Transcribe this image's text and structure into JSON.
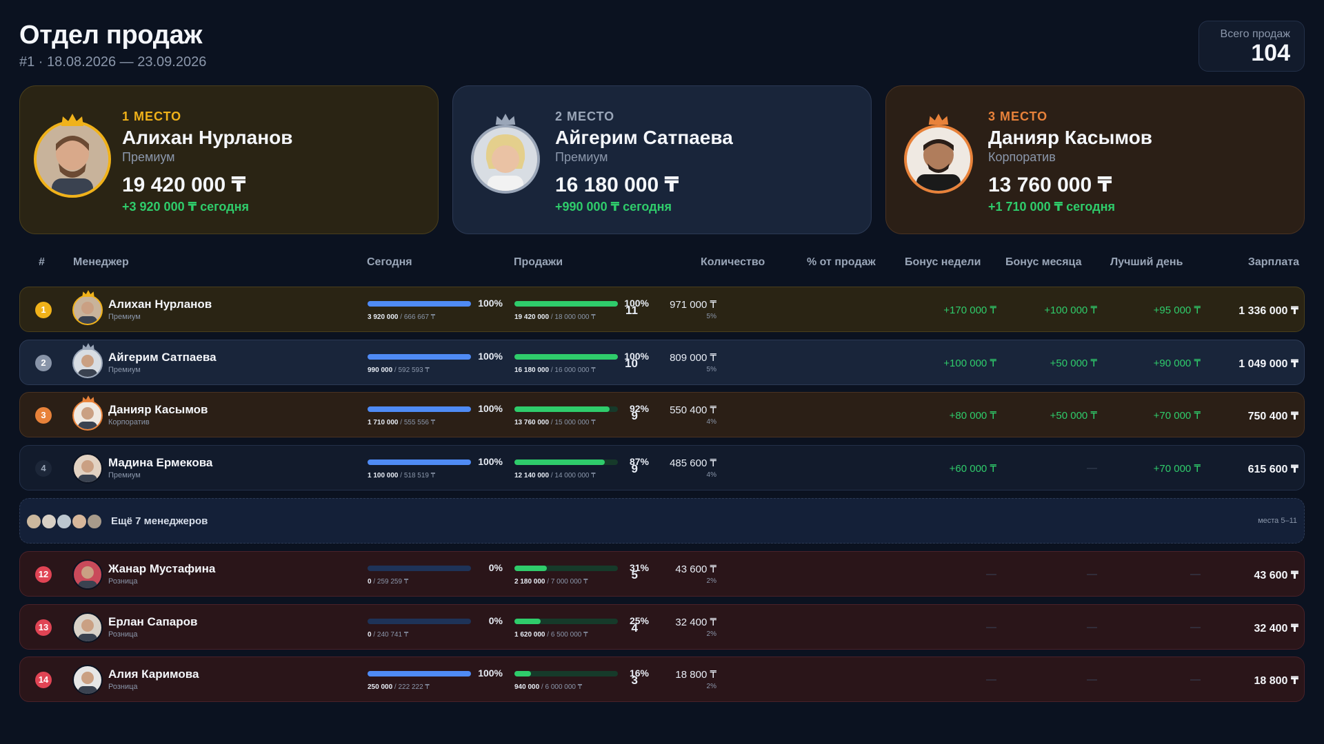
{
  "header": {
    "title": "Отдел продаж",
    "subtitle": "#1 · 18.08.2026 — 23.09.2026",
    "total_label": "Всего продаж",
    "total_value": "104"
  },
  "colors": {
    "gold": "#f0b21a",
    "silver": "#9aa6b8",
    "bronze": "#e8823a",
    "positive": "#2fcc6b",
    "bar_today": "#4f8bf5",
    "bar_sales": "#2fcc6b",
    "alert": "#e04454"
  },
  "podium": [
    {
      "place": "1 МЕСТО",
      "name": "Алихан Нурланов",
      "tier": "Премиум",
      "amount": "19 420 000 ₸",
      "today": "+3 920 000 ₸ сегодня"
    },
    {
      "place": "2 МЕСТО",
      "name": "Айгерим Сатпаева",
      "tier": "Премиум",
      "amount": "16 180 000 ₸",
      "today": "+990 000 ₸ сегодня"
    },
    {
      "place": "3 МЕСТО",
      "name": "Данияр Касымов",
      "tier": "Корпоратив",
      "amount": "13 760 000 ₸",
      "today": "+1 710 000 ₸ сегодня"
    }
  ],
  "columns": {
    "rank": "#",
    "manager": "Менеджер",
    "today": "Сегодня",
    "sales": "Продажи",
    "count": "Количество",
    "share": "% от продаж",
    "bonus_week": "Бонус недели",
    "bonus_month": "Бонус месяца",
    "best_day": "Лучший день",
    "salary": "Зарплата"
  },
  "rows": [
    {
      "rank": "1",
      "name": "Алихан Нурланов",
      "tier": "Премиум",
      "today_pct": "100%",
      "today_fill": 1.0,
      "today_done": "3 920 000",
      "today_plan": " / 666 667 ₸",
      "sales_pct": "100%",
      "sales_fill": 1.0,
      "sales_done": "19 420 000",
      "sales_plan": " / 18 000 000 ₸",
      "count": "11",
      "share": "971 000 ₸",
      "share_pct": "5%",
      "bonus_week": "+170 000 ₸",
      "bonus_month": "+100 000 ₸",
      "best_day": "+95 000 ₸",
      "salary": "1 336 000 ₸"
    },
    {
      "rank": "2",
      "name": "Айгерим Сатпаева",
      "tier": "Премиум",
      "today_pct": "100%",
      "today_fill": 1.0,
      "today_done": "990 000",
      "today_plan": " / 592 593 ₸",
      "sales_pct": "100%",
      "sales_fill": 1.0,
      "sales_done": "16 180 000",
      "sales_plan": " / 16 000 000 ₸",
      "count": "10",
      "share": "809 000 ₸",
      "share_pct": "5%",
      "bonus_week": "+100 000 ₸",
      "bonus_month": "+50 000 ₸",
      "best_day": "+90 000 ₸",
      "salary": "1 049 000 ₸"
    },
    {
      "rank": "3",
      "name": "Данияр Касымов",
      "tier": "Корпоратив",
      "today_pct": "100%",
      "today_fill": 1.0,
      "today_done": "1 710 000",
      "today_plan": " / 555 556 ₸",
      "sales_pct": "92%",
      "sales_fill": 0.92,
      "sales_done": "13 760 000",
      "sales_plan": " / 15 000 000 ₸",
      "count": "9",
      "share": "550 400 ₸",
      "share_pct": "4%",
      "bonus_week": "+80 000 ₸",
      "bonus_month": "+50 000 ₸",
      "best_day": "+70 000 ₸",
      "salary": "750 400 ₸"
    },
    {
      "rank": "4",
      "name": "Мадина Ермекова",
      "tier": "Премиум",
      "today_pct": "100%",
      "today_fill": 1.0,
      "today_done": "1 100 000",
      "today_plan": " / 518 519 ₸",
      "sales_pct": "87%",
      "sales_fill": 0.87,
      "sales_done": "12 140 000",
      "sales_plan": " / 14 000 000 ₸",
      "count": "9",
      "share": "485 600 ₸",
      "share_pct": "4%",
      "bonus_week": "+60 000 ₸",
      "bonus_month": "—",
      "best_day": "+70 000 ₸",
      "salary": "615 600 ₸"
    },
    {
      "rank": "12",
      "name": "Жанар Мустафина",
      "tier": "Розница",
      "today_pct": "0%",
      "today_fill": 0.0,
      "today_done": "0",
      "today_plan": " / 259 259 ₸",
      "sales_pct": "31%",
      "sales_fill": 0.31,
      "sales_done": "2 180 000",
      "sales_plan": " / 7 000 000 ₸",
      "count": "5",
      "share": "43 600 ₸",
      "share_pct": "2%",
      "bonus_week": "—",
      "bonus_month": "—",
      "best_day": "—",
      "salary": "43 600 ₸"
    },
    {
      "rank": "13",
      "name": "Ерлан Сапаров",
      "tier": "Розница",
      "today_pct": "0%",
      "today_fill": 0.0,
      "today_done": "0",
      "today_plan": " / 240 741 ₸",
      "sales_pct": "25%",
      "sales_fill": 0.25,
      "sales_done": "1 620 000",
      "sales_plan": " / 6 500 000 ₸",
      "count": "4",
      "share": "32 400 ₸",
      "share_pct": "2%",
      "bonus_week": "—",
      "bonus_month": "—",
      "best_day": "—",
      "salary": "32 400 ₸"
    },
    {
      "rank": "14",
      "name": "Алия Каримова",
      "tier": "Розница",
      "today_pct": "100%",
      "today_fill": 1.0,
      "today_done": "250 000",
      "today_plan": " / 222 222 ₸",
      "sales_pct": "16%",
      "sales_fill": 0.16,
      "sales_done": "940 000",
      "sales_plan": " / 6 000 000 ₸",
      "count": "3",
      "share": "18 800 ₸",
      "share_pct": "2%",
      "bonus_week": "—",
      "bonus_month": "—",
      "best_day": "—",
      "salary": "18 800 ₸"
    }
  ],
  "more": {
    "label": "Ещё 7 менеджеров",
    "range": "места 5–11"
  }
}
